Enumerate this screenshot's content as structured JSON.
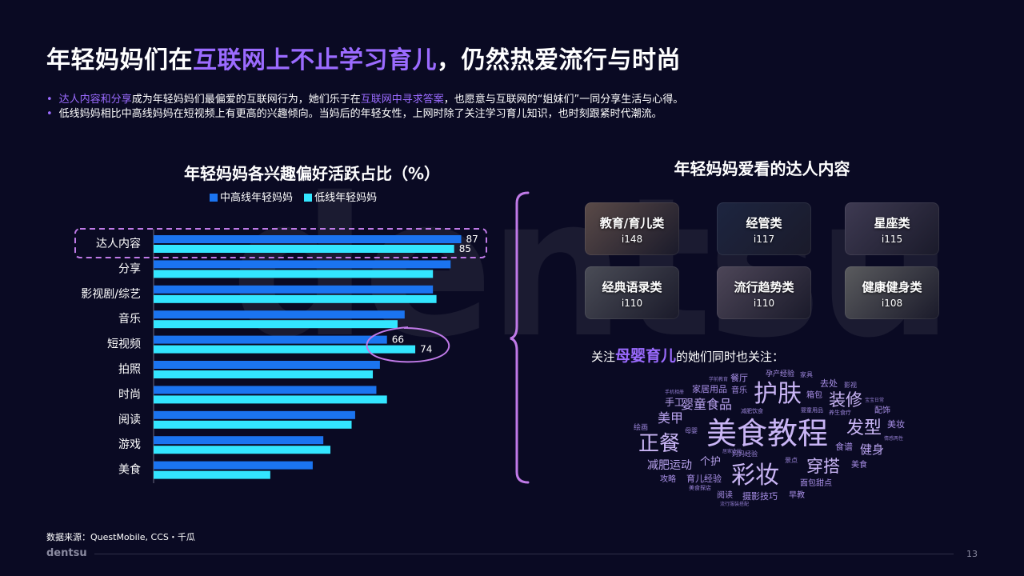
{
  "page": {
    "title_prefix": "年轻妈妈们在",
    "title_highlight": "互联网上不止学习育儿",
    "title_suffix": "，仍然热爱流行与时尚",
    "watermark": "dentsu",
    "bullets": [
      {
        "h1": "达人内容和分享",
        "t1": "成为年轻妈妈们最偏爱的互联网行为，她们乐于在",
        "h2": "互联网中寻求答案",
        "t2": "，也愿意与互联网的“姐妹们”一同分享生活与心得。"
      },
      {
        "text": "低线妈妈相比中高线妈妈在短视频上有更高的兴趣倾向。当妈后的年轻女性，上网时除了关注学习育儿知识，也时刻跟紧时代潮流。"
      }
    ],
    "source": "数据来源：QuestMobile, CCS・千瓜",
    "footer_logo": "dentsu",
    "page_number": "13"
  },
  "colors": {
    "accent": "#9b6bff",
    "series_high": "#1b74f0",
    "series_low": "#33e6ff",
    "highlight_box": "#c07ae8"
  },
  "chart_data": {
    "type": "bar",
    "orientation": "horizontal",
    "title": "年轻妈妈各兴趣偏好活跃占比（%）",
    "categories": [
      "达人内容",
      "分享",
      "影视剧/综艺",
      "音乐",
      "短视频",
      "拍照",
      "时尚",
      "阅读",
      "游戏",
      "美食"
    ],
    "series": [
      {
        "name": "中高线年轻妈妈",
        "color": "#1b74f0",
        "values": [
          87,
          84,
          79,
          71,
          66,
          64,
          63,
          57,
          48,
          45
        ]
      },
      {
        "name": "低线年轻妈妈",
        "color": "#33e6ff",
        "values": [
          85,
          79,
          80,
          69,
          74,
          62,
          66,
          56,
          50,
          33
        ]
      }
    ],
    "data_labels": [
      {
        "category": "达人内容",
        "series": "中高线年轻妈妈",
        "value": "87"
      },
      {
        "category": "达人内容",
        "series": "低线年轻妈妈",
        "value": "85"
      },
      {
        "category": "短视频",
        "series": "中高线年轻妈妈",
        "value": "66"
      },
      {
        "category": "短视频",
        "series": "低线年轻妈妈",
        "value": "74"
      }
    ],
    "xlim": [
      0,
      100
    ],
    "grid": false,
    "legend": "top",
    "highlight_category": "达人内容",
    "circled_category": "短视频"
  },
  "influencer": {
    "title": "年轻妈妈爱看的达人内容",
    "cards": [
      {
        "name": "教育/育儿类",
        "value": "i148",
        "bg": "#5a4a48"
      },
      {
        "name": "经管类",
        "value": "i117",
        "bg": "#1d2540"
      },
      {
        "name": "星座类",
        "value": "i115",
        "bg": "#3e3a52"
      },
      {
        "name": "经典语录类",
        "value": "i110",
        "bg": "#4a4c56"
      },
      {
        "name": "流行趋势类",
        "value": "i110",
        "bg": "#4d4658"
      },
      {
        "name": "健康健身类",
        "value": "i108",
        "bg": "#5a5b5e"
      }
    ]
  },
  "word_cloud": {
    "label_prefix": "关注",
    "label_highlight": "母婴育儿",
    "label_suffix": "的她们同时也关注：",
    "words": [
      {
        "text": "美食教程",
        "size": 38,
        "color": "#c9b5f5"
      },
      {
        "text": "护肤",
        "size": 30,
        "color": "#c9b5f5"
      },
      {
        "text": "彩妆",
        "size": 30,
        "color": "#c9b5f5"
      },
      {
        "text": "正餐",
        "size": 26,
        "color": "#c9b5f5"
      },
      {
        "text": "发型",
        "size": 22,
        "color": "#c9b5f5"
      },
      {
        "text": "装修",
        "size": 21,
        "color": "#c9b5f5"
      },
      {
        "text": "穿搭",
        "size": 21,
        "color": "#c9b5f5"
      },
      {
        "text": "婴童食品",
        "size": 16,
        "color": "#b9a3ee"
      },
      {
        "text": "美甲",
        "size": 16,
        "color": "#b9a3ee"
      },
      {
        "text": "减肥运动",
        "size": 14,
        "color": "#b9a3ee"
      },
      {
        "text": "健身",
        "size": 15,
        "color": "#b9a3ee"
      },
      {
        "text": "手工",
        "size": 12,
        "color": "#b9a3ee"
      },
      {
        "text": "个护",
        "size": 13,
        "color": "#b9a3ee"
      },
      {
        "text": "家居用品",
        "size": 11,
        "color": "#a88fe6"
      },
      {
        "text": "餐厅",
        "size": 11,
        "color": "#a88fe6"
      },
      {
        "text": "音乐",
        "size": 10,
        "color": "#a88fe6"
      },
      {
        "text": "去处",
        "size": 11,
        "color": "#a88fe6"
      },
      {
        "text": "箱包",
        "size": 10,
        "color": "#a88fe6"
      },
      {
        "text": "配饰",
        "size": 10,
        "color": "#a88fe6"
      },
      {
        "text": "美妆",
        "size": 11,
        "color": "#a88fe6"
      },
      {
        "text": "食谱",
        "size": 11,
        "color": "#a88fe6"
      },
      {
        "text": "美食",
        "size": 10,
        "color": "#a88fe6"
      },
      {
        "text": "育儿经验",
        "size": 11,
        "color": "#a88fe6"
      },
      {
        "text": "面包甜点",
        "size": 10,
        "color": "#a88fe6"
      },
      {
        "text": "摄影技巧",
        "size": 11,
        "color": "#a88fe6"
      },
      {
        "text": "攻略",
        "size": 10,
        "color": "#a88fe6"
      },
      {
        "text": "阅读",
        "size": 10,
        "color": "#a88fe6"
      },
      {
        "text": "早教",
        "size": 10,
        "color": "#a88fe6"
      },
      {
        "text": "孕产经验",
        "size": 9,
        "color": "#a88fe6"
      },
      {
        "text": "家具",
        "size": 8,
        "color": "#9a84d8"
      },
      {
        "text": "影视",
        "size": 8,
        "color": "#9a84d8"
      },
      {
        "text": "绘画",
        "size": 9,
        "color": "#9a84d8"
      },
      {
        "text": "母婴",
        "size": 8,
        "color": "#9a84d8"
      },
      {
        "text": "景点",
        "size": 8,
        "color": "#9a84d8"
      },
      {
        "text": "妈妈经验",
        "size": 8,
        "color": "#9a84d8"
      },
      {
        "text": "婴童用品",
        "size": 7,
        "color": "#9a84d8"
      },
      {
        "text": "减肥饮食",
        "size": 7,
        "color": "#9a84d8"
      },
      {
        "text": "养生食疗",
        "size": 7,
        "color": "#9a84d8"
      },
      {
        "text": "美食探店",
        "size": 7,
        "color": "#9a84d8"
      },
      {
        "text": "学前教育",
        "size": 6,
        "color": "#8c78c8"
      },
      {
        "text": "手机相册",
        "size": 6,
        "color": "#8c78c8"
      },
      {
        "text": "宝宝日常",
        "size": 6,
        "color": "#8c78c8"
      },
      {
        "text": "居家收纳",
        "size": 6,
        "color": "#8c78c8"
      },
      {
        "text": "流行服装搭配",
        "size": 6,
        "color": "#8c78c8"
      },
      {
        "text": "情感两性",
        "size": 6,
        "color": "#8c78c8"
      }
    ]
  }
}
